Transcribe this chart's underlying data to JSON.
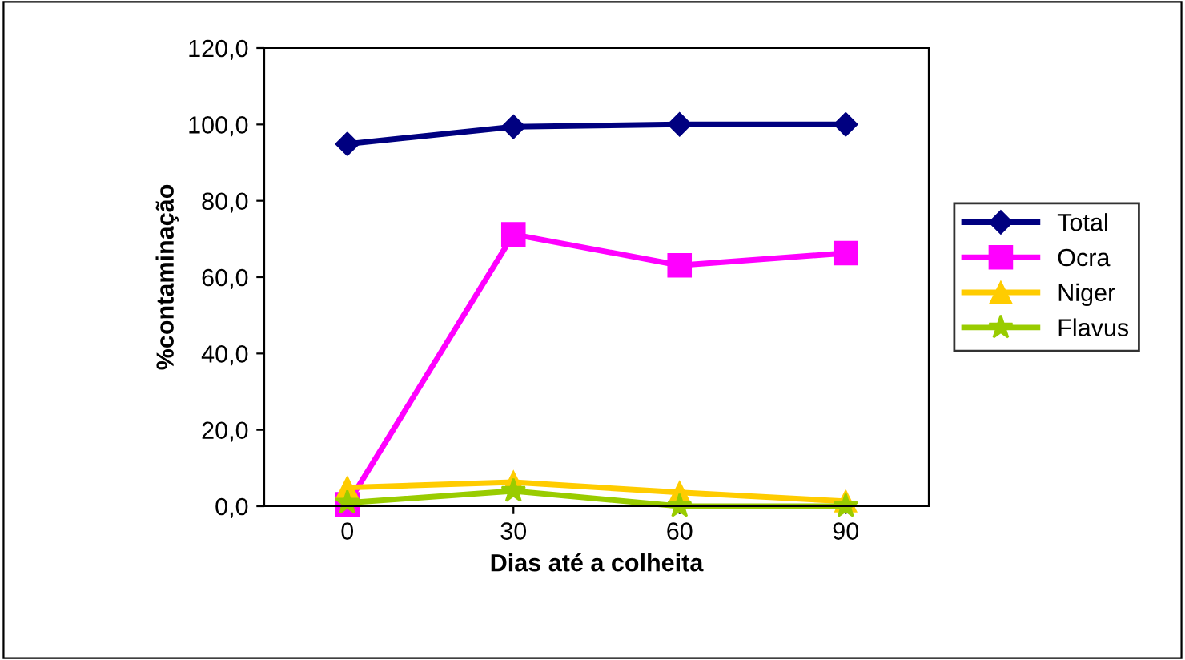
{
  "chart_data": {
    "type": "line",
    "xlabel": "Dias até a colheita",
    "ylabel": "%contaminação",
    "categories": [
      "0",
      "30",
      "60",
      "90"
    ],
    "series": [
      {
        "name": "Total",
        "color": "#000080",
        "marker": "diamond",
        "values": [
          94.9,
          99.4,
          100,
          100
        ]
      },
      {
        "name": "Ocra",
        "color": "#ff00ff",
        "marker": "square",
        "values": [
          0.5,
          71.2,
          63.1,
          66.3
        ]
      },
      {
        "name": "Niger",
        "color": "#ffcc00",
        "marker": "triangle",
        "values": [
          4.9,
          6.3,
          3.6,
          1.3
        ]
      },
      {
        "name": "Flavus",
        "color": "#99cc00",
        "marker": "star",
        "values": [
          0.9,
          4.0,
          0,
          0
        ]
      }
    ],
    "ylim": [
      0,
      120
    ],
    "yticks": [
      {
        "value": 0,
        "label": "0,0"
      },
      {
        "value": 20,
        "label": "20,0"
      },
      {
        "value": 40,
        "label": "40,0"
      },
      {
        "value": 60,
        "label": "60,0"
      },
      {
        "value": 80,
        "label": "80,0"
      },
      {
        "value": 100,
        "label": "100,0"
      },
      {
        "value": 120,
        "label": "120,0"
      }
    ],
    "grid": false,
    "legend": "right",
    "line_style": "solid"
  }
}
